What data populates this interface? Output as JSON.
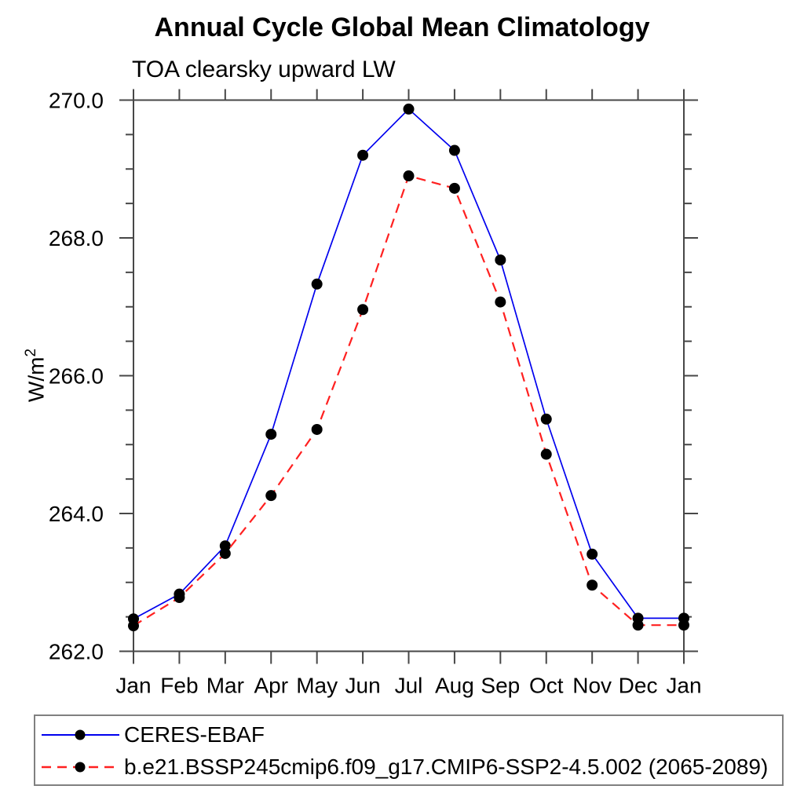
{
  "chart_data": {
    "type": "line",
    "title": "Annual Cycle Global Mean Climatology",
    "subtitle": "TOA clearsky upward LW",
    "ylabel": "W/m²",
    "ylabel_base": "W/m",
    "ylabel_sup": "2",
    "x_categories": [
      "Jan",
      "Feb",
      "Mar",
      "Apr",
      "May",
      "Jun",
      "Jul",
      "Aug",
      "Sep",
      "Oct",
      "Nov",
      "Dec",
      "Jan"
    ],
    "ylim": [
      262.0,
      270.0
    ],
    "ytick_major_step": 2.0,
    "ytick_minor_step": 0.5,
    "ytick_labels": [
      "262.0",
      "264.0",
      "266.0",
      "268.0",
      "270.0"
    ],
    "grid": false,
    "legend_position": "bottom-left-box",
    "series": [
      {
        "name": "CERES-EBAF",
        "color": "#0000ee",
        "line_style": "solid",
        "marker": "filled-circle",
        "marker_color": "#000000",
        "values": [
          262.47,
          262.83,
          263.53,
          265.15,
          267.33,
          269.2,
          269.87,
          269.27,
          267.68,
          265.37,
          263.41,
          262.48,
          262.48
        ]
      },
      {
        "name": "b.e21.BSSP245cmip6.f09_g17.CMIP6-SSP2-4.5.002 (2065-2089)",
        "color": "#ff2020",
        "line_style": "dashed",
        "marker": "filled-circle",
        "marker_color": "#000000",
        "values": [
          262.37,
          262.78,
          263.42,
          264.26,
          265.22,
          266.96,
          268.9,
          268.72,
          267.07,
          264.86,
          262.96,
          262.38,
          262.38
        ]
      }
    ],
    "axis_color": "#474747",
    "text_color": "#000000"
  }
}
